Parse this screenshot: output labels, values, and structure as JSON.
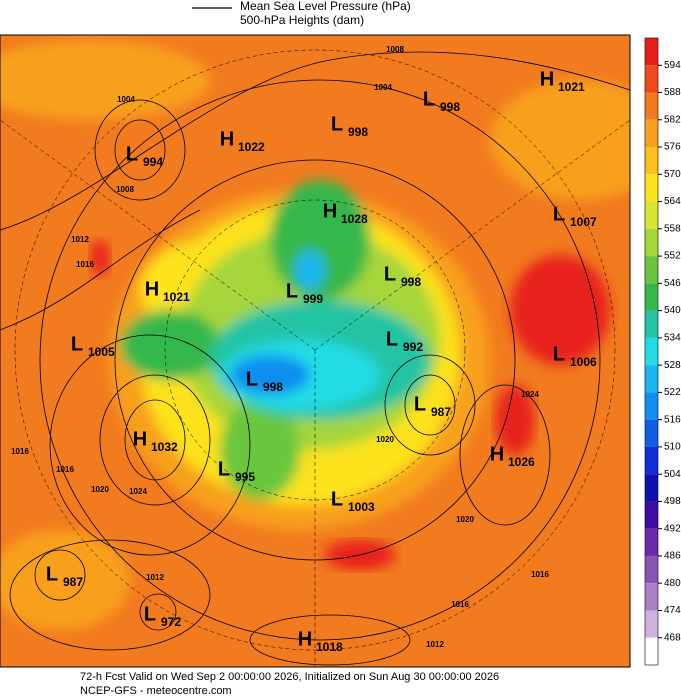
{
  "header": {
    "legend_lines": [
      "Mean Sea Level Pressure (hPa)",
      "500-hPa Heights (dam)"
    ]
  },
  "colorbar": {
    "ticks": [
      594,
      588,
      582,
      576,
      570,
      564,
      558,
      552,
      546,
      540,
      534,
      528,
      522,
      516,
      510,
      504,
      498,
      492,
      486,
      480,
      474,
      468
    ],
    "colors": [
      "#e8201c",
      "#f04a1c",
      "#f27a1f",
      "#f8a01e",
      "#fbc01e",
      "#fde21e",
      "#d6e632",
      "#a6d63a",
      "#6ac63e",
      "#36b84c",
      "#22c4a4",
      "#22dce6",
      "#1ab6f0",
      "#108ef0",
      "#105ee6",
      "#102ed6",
      "#1010b0",
      "#3e0ca0",
      "#6a2aa8",
      "#8a54b4",
      "#ac80c6",
      "#cfb2de",
      "#ffffff"
    ]
  },
  "centers": [
    {
      "kind": "H",
      "value": 1021
    },
    {
      "kind": "L",
      "value": 998
    },
    {
      "kind": "L",
      "value": 998
    },
    {
      "kind": "H",
      "value": 1022
    },
    {
      "kind": "L",
      "value": 994
    },
    {
      "kind": "H",
      "value": 1028
    },
    {
      "kind": "L",
      "value": 1007
    },
    {
      "kind": "H",
      "value": 1021
    },
    {
      "kind": "L",
      "value": 998
    },
    {
      "kind": "L",
      "value": 999
    },
    {
      "kind": "L",
      "value": 1005
    },
    {
      "kind": "L",
      "value": 992
    },
    {
      "kind": "L",
      "value": 1006
    },
    {
      "kind": "L",
      "value": 998
    },
    {
      "kind": "L",
      "value": 987
    },
    {
      "kind": "H",
      "value": 1032
    },
    {
      "kind": "H",
      "value": 1026
    },
    {
      "kind": "L",
      "value": 995
    },
    {
      "kind": "L",
      "value": 1003
    },
    {
      "kind": "L",
      "value": 987
    },
    {
      "kind": "L",
      "value": 972
    },
    {
      "kind": "H",
      "value": 1018
    }
  ],
  "contour_labels": [
    1008,
    1004,
    1004,
    1008,
    1012,
    1016,
    1016,
    1016,
    1020,
    1024,
    1012,
    1020,
    1024,
    1020,
    1016,
    1016,
    1012
  ],
  "footer": {
    "lines": [
      "72-h Fcst Valid on Wed Sep  2 00:00:00 2026, Initialized on Sun Aug 30 00:00:00 2026",
      "NCEP-GFS  - meteocentre.com"
    ]
  }
}
